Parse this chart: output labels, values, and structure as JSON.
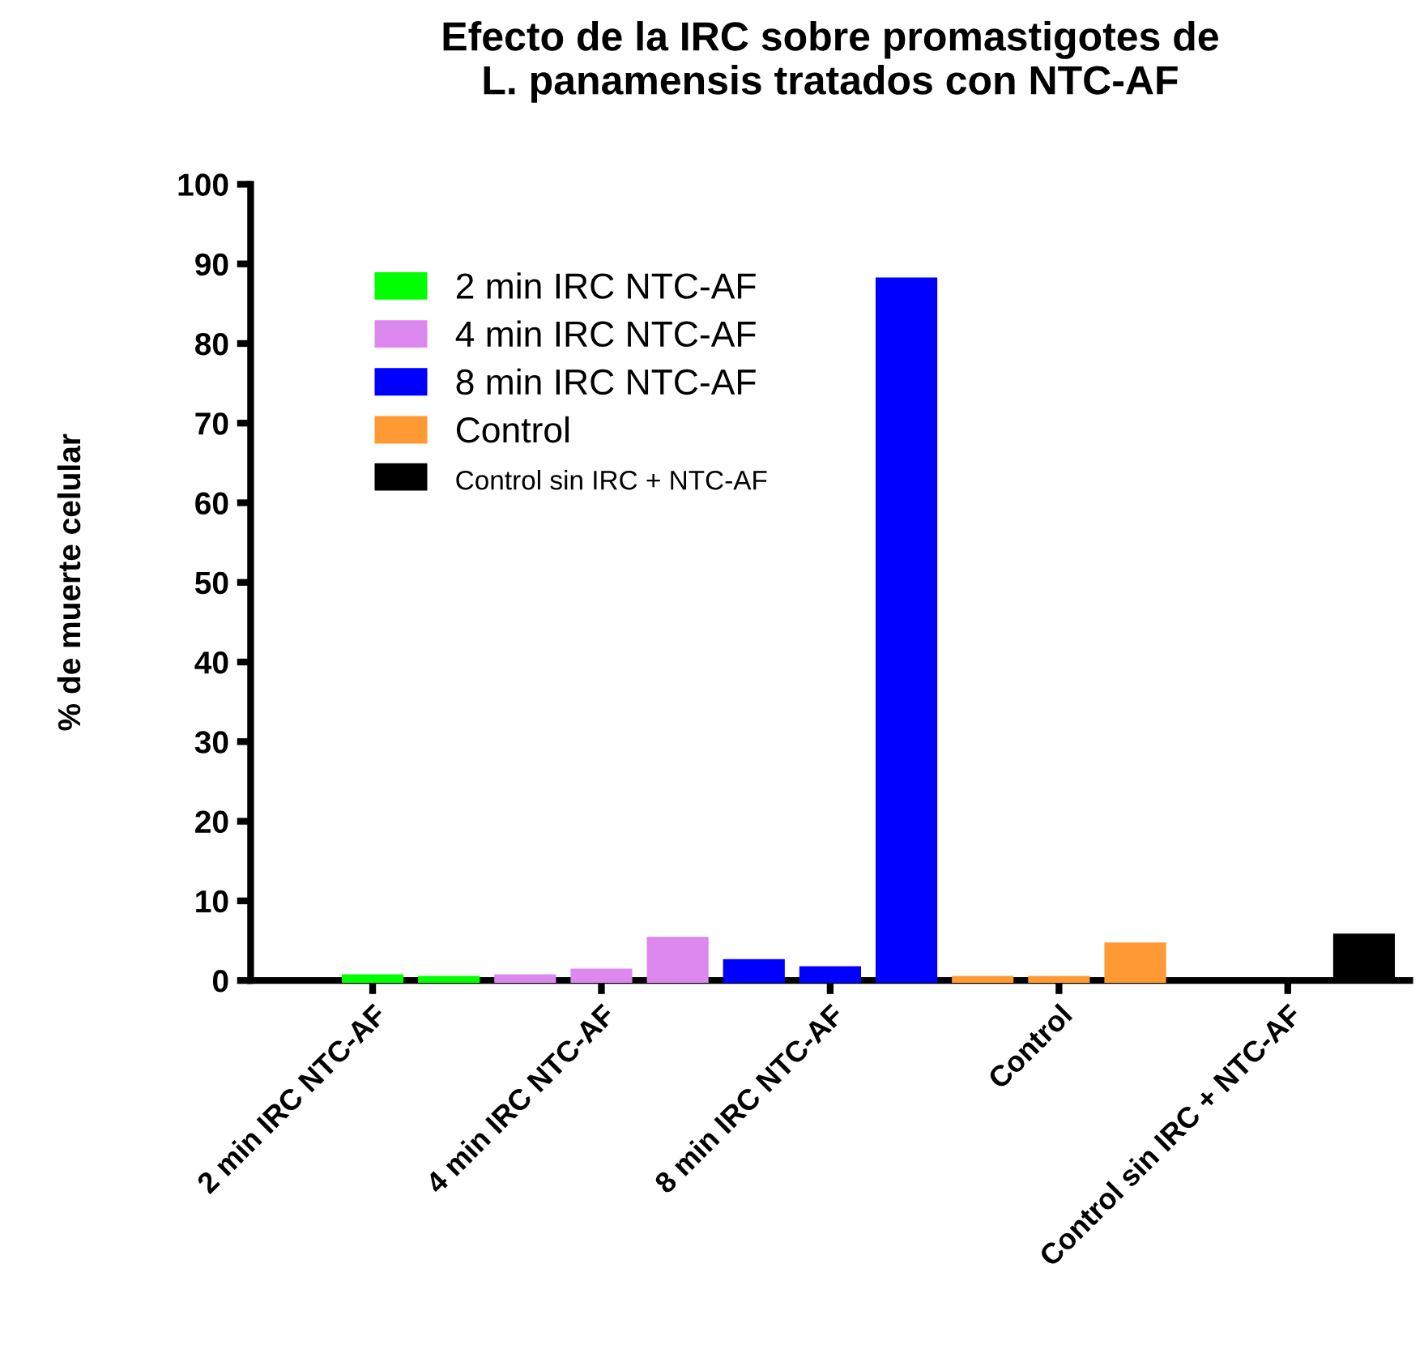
{
  "chart_data": {
    "type": "bar",
    "title": "Efecto de la IRC sobre promastigotes de\nL. panamensis tratados con NTC-AF",
    "ylabel": "% de muerte celular",
    "categories": [
      null,
      "2 min IRC NTC-AF",
      null,
      null,
      "4 min IRC NTC-AF",
      null,
      null,
      "8 min IRC NTC-AF",
      null,
      null,
      "Control",
      null,
      null,
      "Control sin IRC + NTC-AF",
      null
    ],
    "series": [
      {
        "name": "2 min IRC NTC-AF",
        "color": "#00ff00",
        "values": [
          null,
          0.5,
          0.3,
          null,
          null,
          null,
          null,
          null,
          null,
          null,
          null,
          null,
          null,
          null,
          null
        ]
      },
      {
        "name": "4 min IRC NTC-AF",
        "color": "#dd88ee",
        "values": [
          null,
          null,
          null,
          0.5,
          1.2,
          5.2,
          null,
          null,
          null,
          null,
          null,
          null,
          null,
          null,
          null
        ]
      },
      {
        "name": "8 min IRC NTC-AF",
        "color": "#0000ff",
        "values": [
          null,
          null,
          null,
          null,
          null,
          null,
          2.4,
          1.5,
          88,
          null,
          null,
          null,
          null,
          null,
          null
        ]
      },
      {
        "name": "Control",
        "color": "#ff9933",
        "values": [
          null,
          null,
          null,
          null,
          null,
          null,
          null,
          null,
          null,
          0.3,
          0.3,
          4.5,
          null,
          null,
          null
        ]
      },
      {
        "name": "Control sin IRC + NTC-AF",
        "color": "#000000",
        "values": [
          null,
          null,
          null,
          null,
          null,
          null,
          null,
          null,
          null,
          null,
          null,
          null,
          0.1,
          0.1,
          5.6
        ]
      }
    ],
    "ylim": [
      0,
      100
    ],
    "yticks": [
      0,
      10,
      20,
      30,
      40,
      50,
      60,
      70,
      80,
      90,
      100
    ],
    "legend": "top left"
  }
}
